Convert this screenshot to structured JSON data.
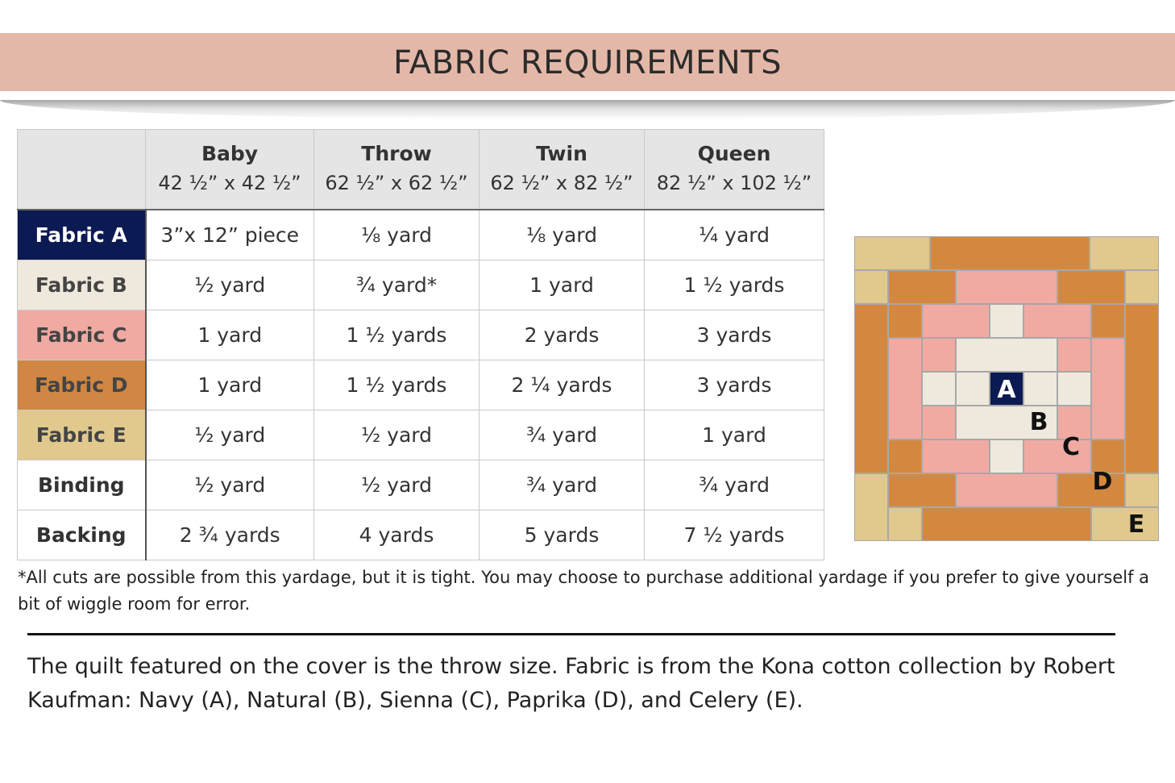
{
  "title": "FABRIC REQUIREMENTS",
  "table": {
    "columns": [
      {
        "size": "Baby",
        "dims": "42 ½” x 42 ½”"
      },
      {
        "size": "Throw",
        "dims": "62 ½” x 62 ½”"
      },
      {
        "size": "Twin",
        "dims": "62 ½” x 82 ½”"
      },
      {
        "size": "Queen",
        "dims": "82 ½” x 102 ½”"
      }
    ],
    "rows": [
      {
        "label": "Fabric A",
        "values": [
          "3”x 12” piece",
          "⅛   yard",
          "⅛  yard",
          "¼ yard"
        ]
      },
      {
        "label": "Fabric B",
        "values": [
          "½ yard",
          "¾ yard*",
          "1 yard",
          "1 ½ yards"
        ]
      },
      {
        "label": "Fabric C",
        "values": [
          "1 yard",
          "1 ½ yards",
          "2 yards",
          "3 yards"
        ]
      },
      {
        "label": "Fabric D",
        "values": [
          "1 yard",
          "1 ½ yards",
          "2 ¼ yards",
          "3  yards"
        ]
      },
      {
        "label": "Fabric E",
        "values": [
          "½ yard",
          "½ yard",
          "¾ yard",
          "1 yard"
        ]
      },
      {
        "label": "Binding",
        "values": [
          "½ yard",
          "½ yard",
          "¾ yard",
          "¾ yard"
        ]
      },
      {
        "label": "Backing",
        "values": [
          "2 ¾ yards",
          "4 yards",
          "5 yards",
          "7 ½ yards"
        ]
      }
    ]
  },
  "colors": {
    "fabric_a": "#0b1a52",
    "fabric_b": "#efe8dc",
    "fabric_c": "#f0aaa2",
    "fabric_d": "#d4883f",
    "fabric_e": "#e1c88c",
    "grid": "#a8a8a8"
  },
  "note": "*All cuts are possible from this yardage, but it is tight. You may choose to purchase additional yardage if you prefer to give yourself a bit of wiggle room for error.",
  "caption": "The quilt featured on the cover is the throw size. Fabric is from the Kona cotton collection by Robert Kaufman: Navy (A), Natural (B), Sienna (C), Paprika (D), and Celery (E).",
  "diagram": {
    "labels": {
      "a": "A",
      "b": "B",
      "c": "C",
      "d": "D",
      "e": "E"
    }
  }
}
